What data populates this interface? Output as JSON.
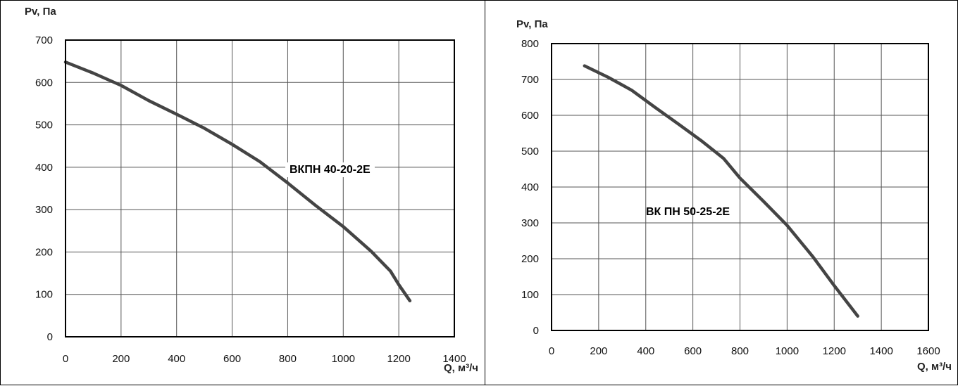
{
  "chart_data": [
    {
      "type": "line",
      "title": "",
      "ylabel": "Pv, Па",
      "xlabel": "Q, м³/ч",
      "xlim": [
        0,
        1400
      ],
      "ylim": [
        0,
        700
      ],
      "x_ticks": [
        0,
        200,
        400,
        600,
        800,
        1000,
        1200,
        1400
      ],
      "y_ticks": [
        0,
        100,
        200,
        300,
        400,
        500,
        600,
        700
      ],
      "grid": true,
      "series": [
        {
          "name": "ВКПН 40-20-2Е",
          "x": [
            0,
            100,
            200,
            300,
            400,
            500,
            600,
            700,
            800,
            900,
            1000,
            1100,
            1170,
            1200,
            1240
          ],
          "y": [
            648,
            622,
            593,
            557,
            525,
            492,
            454,
            413,
            363,
            310,
            260,
            202,
            155,
            123,
            85
          ]
        }
      ]
    },
    {
      "type": "line",
      "title": "",
      "ylabel": "Pv, Па",
      "xlabel": "Q, м³/ч",
      "xlim": [
        0,
        1600
      ],
      "ylim": [
        0,
        800
      ],
      "x_ticks": [
        0,
        200,
        400,
        600,
        800,
        1000,
        1200,
        1400,
        1600
      ],
      "y_ticks": [
        0,
        100,
        200,
        300,
        400,
        500,
        600,
        700,
        800
      ],
      "grid": true,
      "series": [
        {
          "name": "ВК ПН 50-25-2Е",
          "x": [
            140,
            240,
            340,
            440,
            540,
            640,
            730,
            800,
            900,
            1000,
            1110,
            1200,
            1300
          ],
          "y": [
            738,
            706,
            670,
            622,
            575,
            527,
            480,
            425,
            360,
            293,
            205,
            125,
            40
          ]
        }
      ]
    }
  ]
}
